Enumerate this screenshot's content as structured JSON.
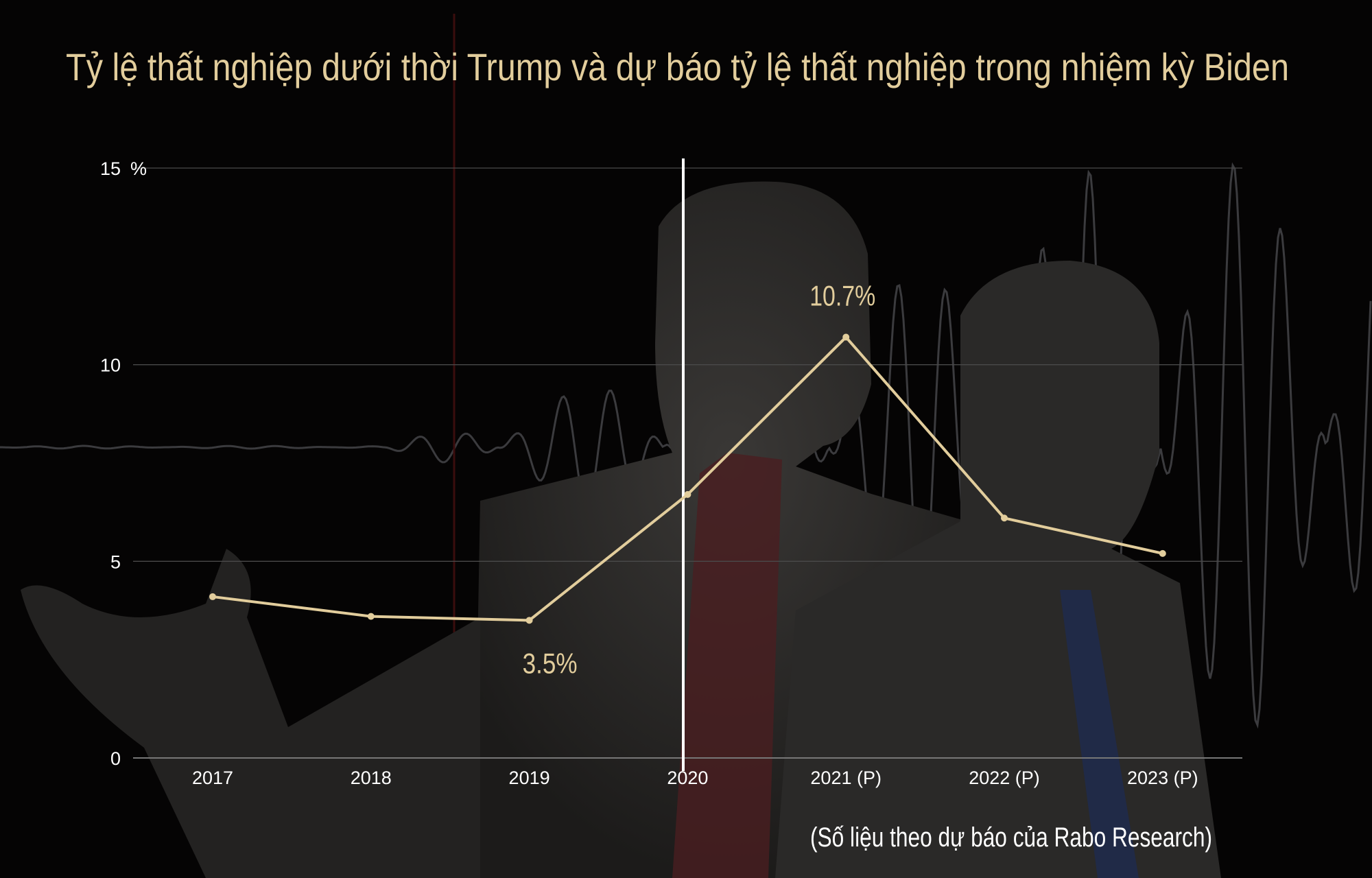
{
  "colors": {
    "background": "#050404",
    "line": "#e2cd9c",
    "title": "#e2cd9c",
    "divider": "#ffffff",
    "grid": "#5a5a5a"
  },
  "chart_data": {
    "type": "line",
    "title": "Tỷ lệ thất nghiệp dưới thời Trump và dự báo tỷ lệ thất nghiệp trong nhiệm kỳ Biden",
    "categories": [
      "2017",
      "2018",
      "2019",
      "2020",
      "2021 (P)",
      "2022 (P)",
      "2023 (P)"
    ],
    "values": [
      4.1,
      3.6,
      3.5,
      6.7,
      10.7,
      6.1,
      5.2
    ],
    "ylim": [
      0,
      15
    ],
    "yticks": [
      0,
      5,
      10,
      15
    ],
    "yunit": "%",
    "grid": true,
    "annotations": [
      {
        "category": "2019",
        "text": "3.5%"
      },
      {
        "category": "2021 (P)",
        "text": "10.7%"
      }
    ],
    "divider_at": "2020",
    "source": "(Số liệu theo dự báo của Rabo Research)"
  }
}
